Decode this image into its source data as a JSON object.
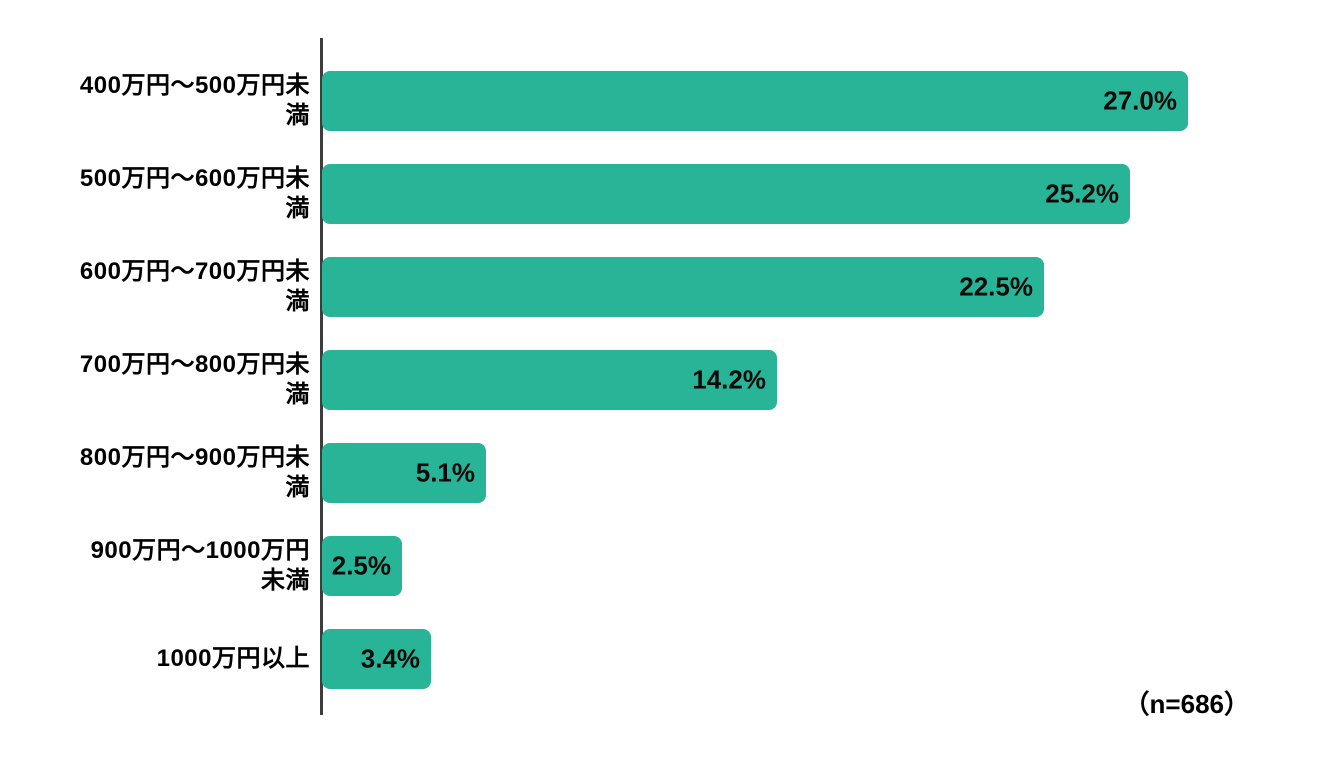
{
  "chart_data": {
    "type": "bar",
    "orientation": "horizontal",
    "title": "",
    "xlabel": "",
    "ylabel": "",
    "categories": [
      "400万円〜500万円未満",
      "500万円〜600万円未満",
      "600万円〜700万円未満",
      "700万円〜800万円未満",
      "800万円〜900万円未満",
      "900万円〜1000万円未満",
      "1000万円以上"
    ],
    "category_labels_wrapped": [
      "400万円〜500万円未\n満",
      "500万円〜600万円未\n満",
      "600万円〜700万円未\n満",
      "700万円〜800万円未\n満",
      "800万円〜900万円未\n満",
      "900万円〜1000万円\n未満",
      "1000万円以上"
    ],
    "values": [
      27.0,
      25.2,
      22.5,
      14.2,
      5.1,
      2.5,
      3.4
    ],
    "value_labels": [
      "27.0%",
      "25.2%",
      "22.5%",
      "14.2%",
      "5.1%",
      "2.5%",
      "3.4%"
    ],
    "annotation": "（n=686）",
    "xlim": [
      0,
      31.4
    ],
    "grid": false,
    "legend": false,
    "bar_color": "#28b496",
    "axis_color": "#3d3d3d",
    "value_label_color": "#0a0a0a",
    "category_label_color": "#000000",
    "background_color": "#ffffff"
  }
}
